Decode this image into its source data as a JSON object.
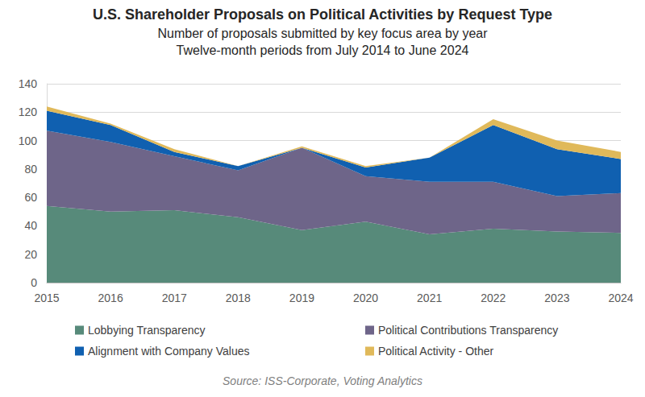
{
  "chart_data": {
    "type": "area",
    "title": "U.S. Shareholder Proposals on Political Activities by Request Type",
    "subtitle": "Number of proposals submitted by key focus area by year\nTwelve-month periods from July 2014 to June 2024",
    "source": "Source: ISS-Corporate, Voting Analytics",
    "categories": [
      "2015",
      "2016",
      "2017",
      "2018",
      "2019",
      "2020",
      "2021",
      "2022",
      "2023",
      "2024"
    ],
    "series": [
      {
        "name": "Lobbying Transparency",
        "color": "#578a7a",
        "values": [
          54,
          50,
          51,
          46,
          37,
          43,
          34,
          38,
          36,
          35
        ]
      },
      {
        "name": "Political Contributions Transparency",
        "color": "#6e6589",
        "values": [
          53,
          49,
          38,
          33,
          58,
          32,
          37,
          33,
          25,
          28
        ]
      },
      {
        "name": "Alignment with Company Values",
        "color": "#1060b0",
        "values": [
          14,
          12,
          3,
          3,
          0,
          6,
          17,
          40,
          33,
          24
        ]
      },
      {
        "name": "Political Activity - Other",
        "color": "#e0b95a",
        "values": [
          3,
          1,
          2,
          0,
          1,
          1,
          0,
          4,
          6,
          5
        ]
      }
    ],
    "ylim": [
      0,
      140
    ],
    "yticks": [
      0,
      20,
      40,
      60,
      80,
      100,
      120,
      140
    ],
    "stacked": true,
    "grid": true,
    "legend": "bottom"
  }
}
